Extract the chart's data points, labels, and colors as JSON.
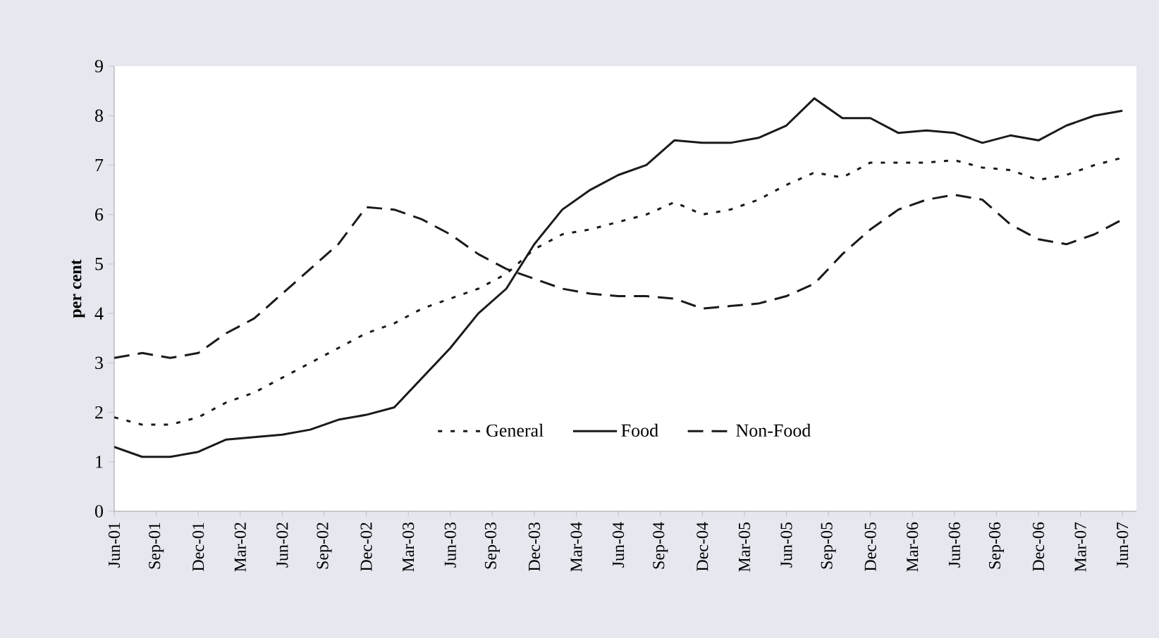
{
  "chart_data": {
    "type": "line",
    "ylabel": "per cent",
    "x": [
      "2001-06",
      "2001-08",
      "2001-10",
      "2001-12",
      "2002-02",
      "2002-04",
      "2002-06",
      "2002-08",
      "2002-10",
      "2002-12",
      "2003-02",
      "2003-04",
      "2003-06",
      "2003-08",
      "2003-10",
      "2003-12",
      "2004-02",
      "2004-04",
      "2004-06",
      "2004-08",
      "2004-10",
      "2004-12",
      "2005-02",
      "2005-04",
      "2005-06",
      "2005-08",
      "2005-10",
      "2005-12",
      "2006-02",
      "2006-04",
      "2006-06",
      "2006-08",
      "2006-10",
      "2006-12",
      "2007-02",
      "2007-04",
      "2007-06"
    ],
    "series": [
      {
        "name": "General",
        "color": "#1a1a1a",
        "line_style": "dotted",
        "values": [
          1.9,
          1.75,
          1.75,
          1.9,
          2.2,
          2.4,
          2.7,
          3.0,
          3.3,
          3.6,
          3.8,
          4.1,
          4.3,
          4.5,
          4.8,
          5.3,
          5.6,
          5.7,
          5.85,
          6.0,
          6.25,
          6.0,
          6.1,
          6.3,
          6.6,
          6.85,
          6.75,
          7.05,
          7.05,
          7.05,
          7.1,
          6.95,
          6.9,
          6.7,
          6.8,
          7.0,
          7.15
        ]
      },
      {
        "name": "Food",
        "color": "#1a1a1a",
        "line_style": "solid",
        "values": [
          1.3,
          1.1,
          1.1,
          1.2,
          1.45,
          1.5,
          1.55,
          1.65,
          1.85,
          1.95,
          2.1,
          2.7,
          3.3,
          4.0,
          4.5,
          5.4,
          6.1,
          6.5,
          6.8,
          7.0,
          7.5,
          7.45,
          7.45,
          7.55,
          7.8,
          8.35,
          7.95,
          7.95,
          7.65,
          7.7,
          7.65,
          7.45,
          7.6,
          7.5,
          7.8,
          8.0,
          8.1
        ]
      },
      {
        "name": "Non-Food",
        "color": "#1a1a1a",
        "line_style": "dashed",
        "values": [
          3.1,
          3.2,
          3.1,
          3.2,
          3.6,
          3.9,
          4.4,
          4.9,
          5.4,
          6.15,
          6.1,
          5.9,
          5.6,
          5.2,
          4.9,
          4.7,
          4.5,
          4.4,
          4.35,
          4.35,
          4.3,
          4.1,
          4.15,
          4.2,
          4.35,
          4.6,
          5.2,
          5.7,
          6.1,
          6.3,
          6.4,
          6.3,
          5.8,
          5.5,
          5.4,
          5.6,
          5.9
        ]
      }
    ],
    "xlim": [
      "2001-06",
      "2007-07"
    ],
    "xticks": [
      {
        "value": "2001-06",
        "label": "Jun-01"
      },
      {
        "value": "2001-09",
        "label": "Sep-01"
      },
      {
        "value": "2001-12",
        "label": "Dec-01"
      },
      {
        "value": "2002-03",
        "label": "Mar-02"
      },
      {
        "value": "2002-06",
        "label": "Jun-02"
      },
      {
        "value": "2002-09",
        "label": "Sep-02"
      },
      {
        "value": "2002-12",
        "label": "Dec-02"
      },
      {
        "value": "2003-03",
        "label": "Mar-03"
      },
      {
        "value": "2003-06",
        "label": "Jun-03"
      },
      {
        "value": "2003-09",
        "label": "Sep-03"
      },
      {
        "value": "2003-12",
        "label": "Dec-03"
      },
      {
        "value": "2004-03",
        "label": "Mar-04"
      },
      {
        "value": "2004-06",
        "label": "Jun-04"
      },
      {
        "value": "2004-09",
        "label": "Sep-04"
      },
      {
        "value": "2004-12",
        "label": "Dec-04"
      },
      {
        "value": "2005-03",
        "label": "Mar-05"
      },
      {
        "value": "2005-06",
        "label": "Jun-05"
      },
      {
        "value": "2005-09",
        "label": "Sep-05"
      },
      {
        "value": "2005-12",
        "label": "Dec-05"
      },
      {
        "value": "2006-03",
        "label": "Mar-06"
      },
      {
        "value": "2006-06",
        "label": "Jun-06"
      },
      {
        "value": "2006-09",
        "label": "Sep-06"
      },
      {
        "value": "2006-12",
        "label": "Dec-06"
      },
      {
        "value": "2007-03",
        "label": "Mar-07"
      },
      {
        "value": "2007-06",
        "label": "Jun-07"
      }
    ],
    "ylim": [
      0,
      9
    ],
    "yticks": [
      0,
      1,
      2,
      3,
      4,
      5,
      6,
      7,
      8,
      9
    ],
    "legend": "bottom",
    "grid": false
  }
}
